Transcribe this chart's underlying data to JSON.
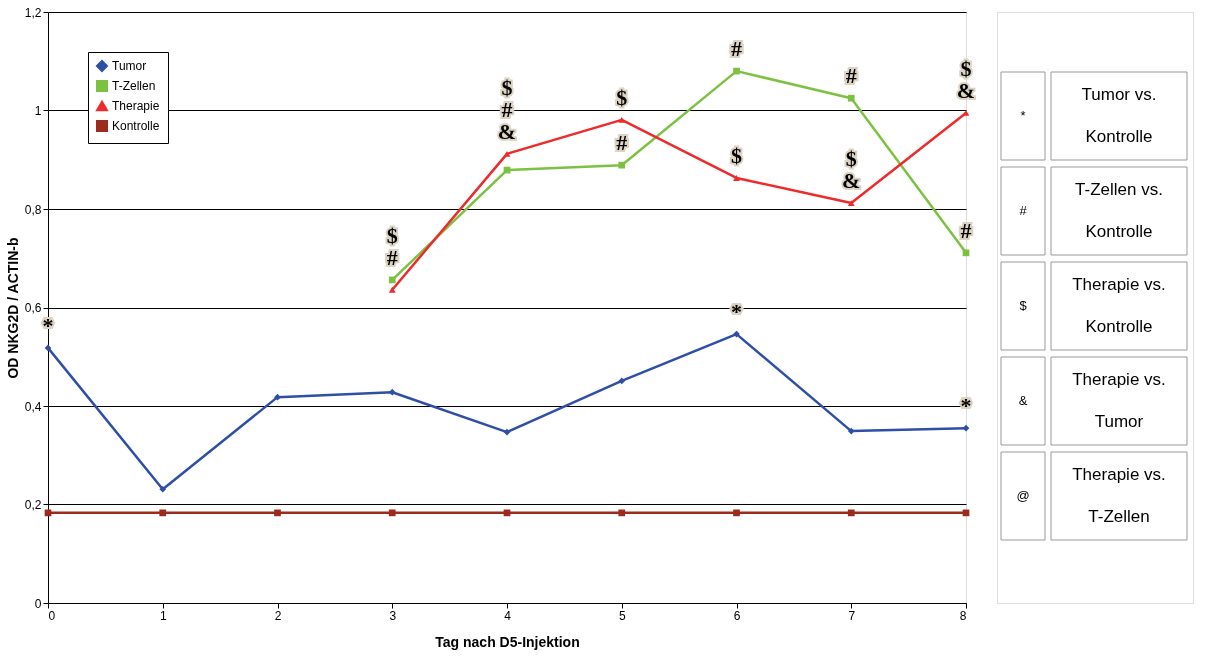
{
  "chart_data": {
    "type": "line",
    "xlabel": "Tag nach D5-Injektion",
    "ylabel": "OD NKG2D / ACTIN-b",
    "x": [
      0,
      1,
      2,
      3,
      4,
      5,
      6,
      7,
      8
    ],
    "series": [
      {
        "name": "Tumor",
        "color": "#2e4fa8",
        "marker": "diamond",
        "values": [
          0.518,
          0.231,
          0.418,
          0.428,
          0.347,
          0.451,
          0.546,
          0.349,
          0.355
        ]
      },
      {
        "name": "T-Zellen",
        "color": "#7dc142",
        "marker": "square",
        "values": [
          null,
          null,
          null,
          0.656,
          0.879,
          0.889,
          1.08,
          1.025,
          0.711
        ]
      },
      {
        "name": "Therapie",
        "color": "#ee2a2a",
        "marker": "triangle",
        "values": [
          null,
          null,
          null,
          0.636,
          0.912,
          0.981,
          0.863,
          0.812,
          0.995
        ]
      },
      {
        "name": "Kontrolle",
        "color": "#9c2b1e",
        "marker": "square",
        "values": [
          0.183,
          0.183,
          0.183,
          0.183,
          0.183,
          0.183,
          0.183,
          0.183,
          0.183
        ]
      }
    ],
    "xlim": [
      0,
      8
    ],
    "xticks": [
      0,
      1,
      2,
      3,
      4,
      5,
      6,
      7,
      8
    ],
    "ylim": [
      0,
      1.2
    ],
    "yticks": [
      0,
      {
        "value": 0.2,
        "label": "0,2"
      },
      {
        "value": 0.4,
        "label": "0,4"
      },
      {
        "value": 0.6,
        "label": "0,6"
      },
      {
        "value": 0.8,
        "label": "0,8"
      },
      {
        "value": 1,
        "label": "1"
      },
      {
        "value": 1.2,
        "label": "1,2"
      }
    ],
    "grid": "y",
    "legend": "top left",
    "line_style": "solid",
    "annotations": [
      {
        "text": "*",
        "x": 0,
        "y": 0.518
      },
      {
        "text": "$",
        "x": 3,
        "y": 0.656
      },
      {
        "text": "#",
        "x": 3,
        "y": 0.656
      },
      {
        "text": "$",
        "x": 4,
        "y": 0.912
      },
      {
        "text": "#",
        "x": 4,
        "y": 0.912
      },
      {
        "text": "&",
        "x": 4,
        "y": 0.912
      },
      {
        "text": "$",
        "x": 5,
        "y": 0.981
      },
      {
        "text": "#",
        "x": 5,
        "y": 0.889
      },
      {
        "text": "#",
        "x": 6,
        "y": 1.08
      },
      {
        "text": "$",
        "x": 6,
        "y": 0.863
      },
      {
        "text": "*",
        "x": 6,
        "y": 0.546
      },
      {
        "text": "#",
        "x": 7,
        "y": 1.025
      },
      {
        "text": "$",
        "x": 7,
        "y": 0.812
      },
      {
        "text": "&",
        "x": 7,
        "y": 0.812
      },
      {
        "text": "$",
        "x": 8,
        "y": 0.995
      },
      {
        "text": "&",
        "x": 8,
        "y": 0.995
      },
      {
        "text": "#",
        "x": 8,
        "y": 0.711
      },
      {
        "text": "*",
        "x": 8,
        "y": 0.355
      },
      "*",
      "Tumor vs. Kontrolle",
      "#",
      "T-Zellen vs. Kontrolle",
      "$",
      "Therapie vs. Kontrolle",
      "&",
      "Therapie vs. Tumor",
      "@",
      "Therapie vs. T-Zellen"
    ]
  }
}
